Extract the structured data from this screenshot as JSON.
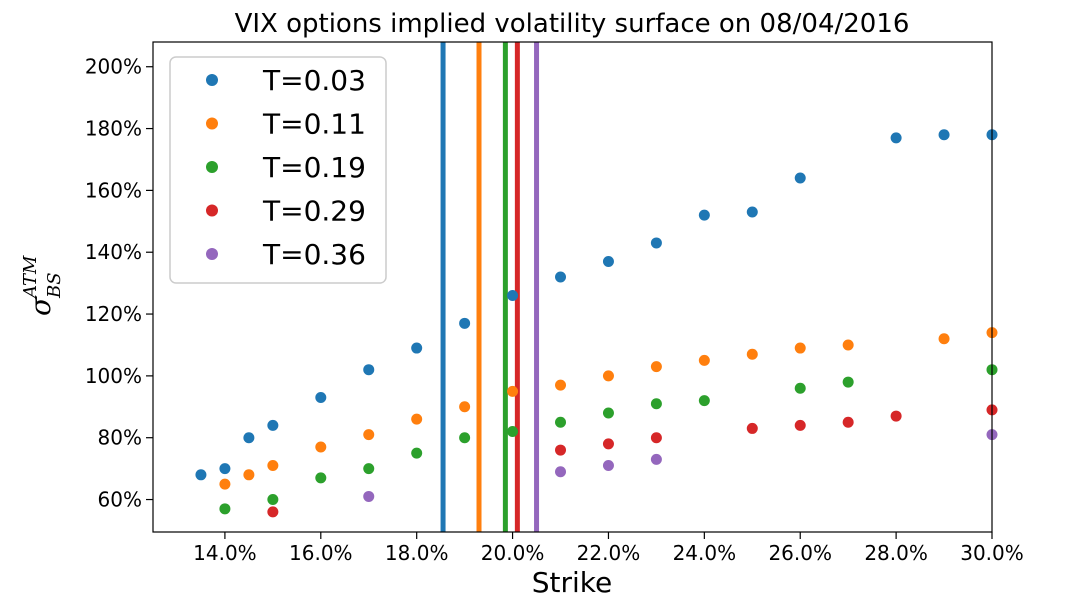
{
  "chart_data": {
    "type": "scatter",
    "title": "VIX options implied volatility surface on 08/04/2016",
    "xlabel": "Strike",
    "ylabel": {
      "symbol": "σ",
      "sup": "ATM",
      "sub": "BS"
    },
    "xlim": [
      12.5,
      30.0
    ],
    "ylim": [
      49.5,
      208
    ],
    "x_ticks": [
      14,
      16,
      18,
      20,
      22,
      24,
      26,
      28,
      30
    ],
    "x_tick_labels": [
      "14.0%",
      "16.0%",
      "18.0%",
      "20.0%",
      "22.0%",
      "24.0%",
      "26.0%",
      "28.0%",
      "30.0%"
    ],
    "y_ticks": [
      60,
      80,
      100,
      120,
      140,
      160,
      180,
      200
    ],
    "y_tick_labels": [
      "60%",
      "80%",
      "100%",
      "120%",
      "140%",
      "160%",
      "180%",
      "200%"
    ],
    "legend_position": "top-left",
    "series": [
      {
        "name": "T=0.03",
        "color": "#1f77b4",
        "points": [
          [
            13.5,
            68
          ],
          [
            14,
            70
          ],
          [
            14.5,
            80
          ],
          [
            15,
            84
          ],
          [
            16,
            93
          ],
          [
            17,
            102
          ],
          [
            18,
            109
          ],
          [
            19,
            117
          ],
          [
            20,
            126
          ],
          [
            21,
            132
          ],
          [
            22,
            137
          ],
          [
            23,
            143
          ],
          [
            24,
            152
          ],
          [
            25,
            153
          ],
          [
            26,
            164
          ],
          [
            28,
            177
          ],
          [
            29,
            178
          ],
          [
            30,
            178
          ]
        ]
      },
      {
        "name": "T=0.11",
        "color": "#ff7f0e",
        "points": [
          [
            14,
            65
          ],
          [
            14.5,
            68
          ],
          [
            15,
            71
          ],
          [
            16,
            77
          ],
          [
            17,
            81
          ],
          [
            18,
            86
          ],
          [
            19,
            90
          ],
          [
            20,
            95
          ],
          [
            21,
            97
          ],
          [
            22,
            100
          ],
          [
            23,
            103
          ],
          [
            24,
            105
          ],
          [
            25,
            107
          ],
          [
            26,
            109
          ],
          [
            27,
            110
          ],
          [
            29,
            112
          ],
          [
            30,
            114
          ]
        ]
      },
      {
        "name": "T=0.19",
        "color": "#2ca02c",
        "points": [
          [
            14,
            57
          ],
          [
            15,
            60
          ],
          [
            16,
            67
          ],
          [
            17,
            70
          ],
          [
            18,
            75
          ],
          [
            19,
            80
          ],
          [
            20,
            82
          ],
          [
            21,
            85
          ],
          [
            22,
            88
          ],
          [
            23,
            91
          ],
          [
            24,
            92
          ],
          [
            26,
            96
          ],
          [
            27,
            98
          ],
          [
            30,
            102
          ]
        ]
      },
      {
        "name": "T=0.29",
        "color": "#d62728",
        "points": [
          [
            15,
            56
          ],
          [
            21,
            76
          ],
          [
            22,
            78
          ],
          [
            23,
            80
          ],
          [
            25,
            83
          ],
          [
            26,
            84
          ],
          [
            27,
            85
          ],
          [
            28,
            87
          ],
          [
            30,
            89
          ]
        ]
      },
      {
        "name": "T=0.36",
        "color": "#9467bd",
        "points": [
          [
            17,
            61
          ],
          [
            21,
            69
          ],
          [
            22,
            71
          ],
          [
            23,
            73
          ],
          [
            30,
            81
          ]
        ]
      }
    ],
    "vertical_lines": [
      {
        "series": "T=0.03",
        "x": 18.55,
        "color": "#1f77b4"
      },
      {
        "series": "T=0.11",
        "x": 19.3,
        "color": "#ff7f0e"
      },
      {
        "series": "T=0.19",
        "x": 19.85,
        "color": "#2ca02c"
      },
      {
        "series": "T=0.29",
        "x": 20.1,
        "color": "#d62728"
      },
      {
        "series": "T=0.36",
        "x": 20.5,
        "color": "#9467bd"
      }
    ]
  }
}
